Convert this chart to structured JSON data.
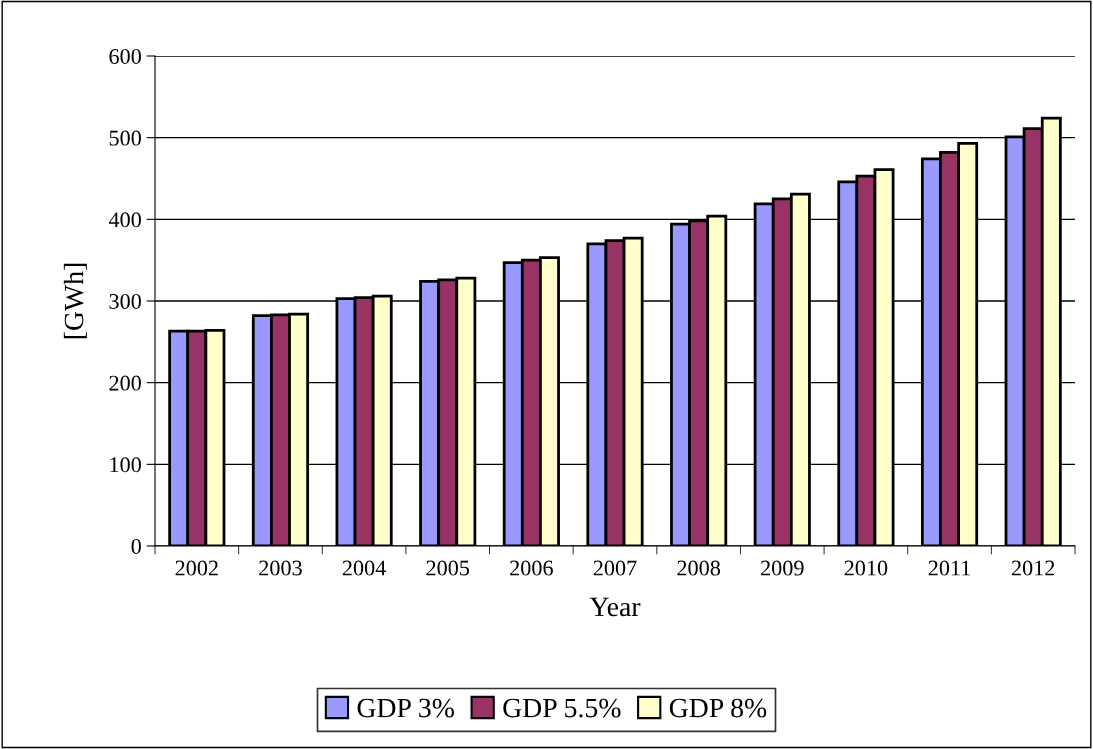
{
  "chart_data": {
    "type": "bar",
    "xlabel": "Year",
    "ylabel": "[GWh]",
    "categories": [
      "2002",
      "2003",
      "2004",
      "2005",
      "2006",
      "2007",
      "2008",
      "2009",
      "2010",
      "2011",
      "2012"
    ],
    "series": [
      {
        "name": "GDP 3%",
        "color": "#9999ff",
        "values": [
          263,
          282,
          303,
          324,
          347,
          370,
          394,
          419,
          446,
          474,
          501
        ]
      },
      {
        "name": "GDP 5.5%",
        "color": "#993366",
        "values": [
          263,
          283,
          304,
          326,
          350,
          374,
          398,
          425,
          453,
          482,
          511
        ]
      },
      {
        "name": "GDP 8%",
        "color": "#ffffcc",
        "values": [
          264,
          284,
          306,
          328,
          353,
          377,
          404,
          431,
          461,
          493,
          524
        ]
      }
    ],
    "ylim": [
      0,
      600
    ],
    "yticks": [
      0,
      100,
      200,
      300,
      400,
      500,
      600
    ],
    "grid": "y",
    "legend": "bottom"
  }
}
